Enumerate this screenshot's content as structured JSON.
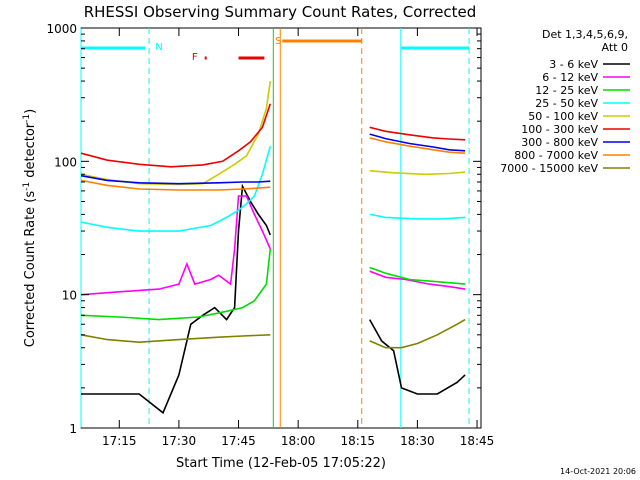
{
  "chart_data": {
    "type": "line",
    "title": "RHESSI Observing Summary Count Rates, Corrected",
    "xlabel": "Start Time (12-Feb-05 17:05:22)",
    "ylabel_main": "Corrected Count Rate (s",
    "ylabel_sup1": "-1",
    "ylabel_mid": " detector",
    "ylabel_sup2": "-1",
    "ylabel_end": ")",
    "y_scale": "log",
    "ylim": [
      1,
      1000
    ],
    "xlim": [
      "17:05:22",
      "18:46:00"
    ],
    "x_ticks": [
      "17:15",
      "17:30",
      "17:45",
      "18:00",
      "18:15",
      "18:30",
      "18:45"
    ],
    "y_ticks": [
      "1",
      "10",
      "100",
      "1000"
    ],
    "legend_header": [
      "Det 1,3,4,5,6,9,",
      "Att 0"
    ],
    "timestamp": "14-Oct-2021 20:06",
    "markers": {
      "N_label": "N",
      "F_label": "F",
      "S_label": "S"
    },
    "series": [
      {
        "name": "3 - 6 keV",
        "color": "#000000",
        "segments": [
          [
            [
              "17:05:22",
              1.8
            ],
            [
              "17:12",
              1.8
            ],
            [
              "17:20",
              1.8
            ],
            [
              "17:26",
              1.3
            ],
            [
              "17:30",
              2.5
            ],
            [
              "17:33",
              6
            ],
            [
              "17:36",
              7
            ],
            [
              "17:39",
              8
            ],
            [
              "17:42",
              6.5
            ],
            [
              "17:44",
              8
            ],
            [
              "17:45",
              30
            ],
            [
              "17:46",
              65
            ],
            [
              "17:48",
              50
            ],
            [
              "17:50",
              40
            ],
            [
              "17:52",
              33
            ],
            [
              "17:53",
              28
            ]
          ],
          [
            [
              "18:18",
              6.5
            ],
            [
              "18:21",
              4.5
            ],
            [
              "18:24",
              3.8
            ],
            [
              "18:26",
              2
            ],
            [
              "18:30",
              1.8
            ],
            [
              "18:35",
              1.8
            ],
            [
              "18:40",
              2.2
            ],
            [
              "18:42",
              2.5
            ]
          ]
        ]
      },
      {
        "name": "6 - 12 keV",
        "color": "#ff00ff",
        "segments": [
          [
            [
              "17:05:22",
              10
            ],
            [
              "17:15",
              10.5
            ],
            [
              "17:25",
              11
            ],
            [
              "17:30",
              12
            ],
            [
              "17:32",
              17
            ],
            [
              "17:34",
              12
            ],
            [
              "17:38",
              13
            ],
            [
              "17:40",
              14
            ],
            [
              "17:43",
              12
            ],
            [
              "17:44",
              22
            ],
            [
              "17:45",
              55
            ],
            [
              "17:47",
              55
            ],
            [
              "17:49",
              40
            ],
            [
              "17:51",
              30
            ],
            [
              "17:53",
              22
            ]
          ],
          [
            [
              "18:18",
              15
            ],
            [
              "18:22",
              13.5
            ],
            [
              "18:27",
              13
            ],
            [
              "18:33",
              12
            ],
            [
              "18:38",
              11.5
            ],
            [
              "18:42",
              11
            ]
          ]
        ]
      },
      {
        "name": "12 - 25 keV",
        "color": "#00dd00",
        "segments": [
          [
            [
              "17:05:22",
              7
            ],
            [
              "17:15",
              6.8
            ],
            [
              "17:25",
              6.5
            ],
            [
              "17:35",
              6.8
            ],
            [
              "17:42",
              7.5
            ],
            [
              "17:46",
              8
            ],
            [
              "17:49",
              9
            ],
            [
              "17:52",
              12
            ],
            [
              "17:53",
              22
            ]
          ],
          [
            [
              "18:18",
              16
            ],
            [
              "18:22",
              14.5
            ],
            [
              "18:28",
              13
            ],
            [
              "18:35",
              12.5
            ],
            [
              "18:42",
              12
            ]
          ]
        ]
      },
      {
        "name": "25 - 50 keV",
        "color": "#00ffff",
        "segments": [
          [
            [
              "17:05:22",
              35
            ],
            [
              "17:12",
              32
            ],
            [
              "17:20",
              30
            ],
            [
              "17:30",
              30
            ],
            [
              "17:38",
              33
            ],
            [
              "17:42",
              38
            ],
            [
              "17:45",
              43
            ],
            [
              "17:47",
              48
            ],
            [
              "17:49",
              55
            ],
            [
              "17:51",
              80
            ],
            [
              "17:53",
              130
            ]
          ],
          [
            [
              "18:18",
              40
            ],
            [
              "18:22",
              38
            ],
            [
              "18:30",
              37
            ],
            [
              "18:36",
              37
            ],
            [
              "18:42",
              38
            ]
          ]
        ]
      },
      {
        "name": "50 - 100 keV",
        "color": "#cccc00",
        "segments": [
          [
            [
              "17:05:22",
              80
            ],
            [
              "17:12",
              73
            ],
            [
              "17:20",
              68
            ],
            [
              "17:30",
              67
            ],
            [
              "17:36",
              68
            ],
            [
              "17:40",
              80
            ],
            [
              "17:44",
              95
            ],
            [
              "17:47",
              110
            ],
            [
              "17:50",
              160
            ],
            [
              "17:52",
              250
            ],
            [
              "17:53",
              400
            ]
          ],
          [
            [
              "18:18",
              85
            ],
            [
              "18:24",
              82
            ],
            [
              "18:32",
              80
            ],
            [
              "18:38",
              81
            ],
            [
              "18:42",
              83
            ]
          ]
        ]
      },
      {
        "name": "100 - 300 keV",
        "color": "#ee0000",
        "segments": [
          [
            [
              "17:05:22",
              115
            ],
            [
              "17:12",
              102
            ],
            [
              "17:20",
              95
            ],
            [
              "17:28",
              91
            ],
            [
              "17:36",
              94
            ],
            [
              "17:41",
              100
            ],
            [
              "17:45",
              120
            ],
            [
              "17:48",
              140
            ],
            [
              "17:51",
              180
            ],
            [
              "17:53",
              270
            ]
          ],
          [
            [
              "18:18",
              180
            ],
            [
              "18:22",
              168
            ],
            [
              "18:28",
              158
            ],
            [
              "18:34",
              150
            ],
            [
              "18:38",
              147
            ],
            [
              "18:42",
              145
            ]
          ]
        ]
      },
      {
        "name": "300 - 800 keV",
        "color": "#0000ee",
        "segments": [
          [
            [
              "17:05:22",
              78
            ],
            [
              "17:12",
              72
            ],
            [
              "17:20",
              69
            ],
            [
              "17:30",
              68
            ],
            [
              "17:40",
              69
            ],
            [
              "17:46",
              70
            ],
            [
              "17:50",
              70
            ],
            [
              "17:53",
              71
            ]
          ],
          [
            [
              "18:18",
              160
            ],
            [
              "18:22",
              148
            ],
            [
              "18:28",
              136
            ],
            [
              "18:34",
              128
            ],
            [
              "18:38",
              122
            ],
            [
              "18:42",
              120
            ]
          ]
        ]
      },
      {
        "name": "800 - 7000 keV",
        "color": "#ff8000",
        "segments": [
          [
            [
              "17:05:22",
              72
            ],
            [
              "17:12",
              66
            ],
            [
              "17:20",
              62
            ],
            [
              "17:30",
              61
            ],
            [
              "17:40",
              61
            ],
            [
              "17:46",
              62
            ],
            [
              "17:50",
              63
            ],
            [
              "17:53",
              64
            ]
          ],
          [
            [
              "18:18",
              150
            ],
            [
              "18:22",
              140
            ],
            [
              "18:28",
              130
            ],
            [
              "18:34",
              122
            ],
            [
              "18:38",
              117
            ],
            [
              "18:42",
              115
            ]
          ]
        ]
      },
      {
        "name": "7000 - 15000 keV",
        "color": "#808000",
        "segments": [
          [
            [
              "17:05:22",
              5
            ],
            [
              "17:12",
              4.6
            ],
            [
              "17:20",
              4.4
            ],
            [
              "17:30",
              4.6
            ],
            [
              "17:40",
              4.8
            ],
            [
              "17:46",
              4.9
            ],
            [
              "17:53",
              5
            ]
          ],
          [
            [
              "18:18",
              4.5
            ],
            [
              "18:22",
              4
            ],
            [
              "18:26",
              4
            ],
            [
              "18:30",
              4.3
            ],
            [
              "18:35",
              5
            ],
            [
              "18:40",
              6
            ],
            [
              "18:42",
              6.5
            ]
          ]
        ]
      }
    ],
    "vertical_lines": [
      {
        "x": "17:05:22",
        "color": "#00ffff",
        "dash": false
      },
      {
        "x": "17:22:30",
        "color": "#00ffff",
        "dash": true
      },
      {
        "x": "17:53:45",
        "color": "#00dd00",
        "dash": false
      },
      {
        "x": "17:55:30",
        "color": "#ff8000",
        "dash": false
      },
      {
        "x": "18:16:00",
        "color": "#ff8000",
        "dash": true
      },
      {
        "x": "18:25:50",
        "color": "#00ffff",
        "dash": false
      },
      {
        "x": "18:43:00",
        "color": "#00ffff",
        "dash": true
      }
    ],
    "bars": [
      {
        "label": "N",
        "color": "#00ffff",
        "ranges": [
          [
            "17:05:22",
            "17:21:30"
          ],
          [
            "18:25:50",
            "18:43:00"
          ]
        ]
      },
      {
        "label": "F",
        "color": "#ee0000",
        "ranges": [
          [
            "17:36:30",
            "17:37:00"
          ],
          [
            "17:45:00",
            "17:51:30"
          ]
        ]
      },
      {
        "label": "S",
        "color": "#ff8000",
        "ranges": [
          [
            "17:56:00",
            "18:16:00"
          ]
        ]
      }
    ]
  }
}
